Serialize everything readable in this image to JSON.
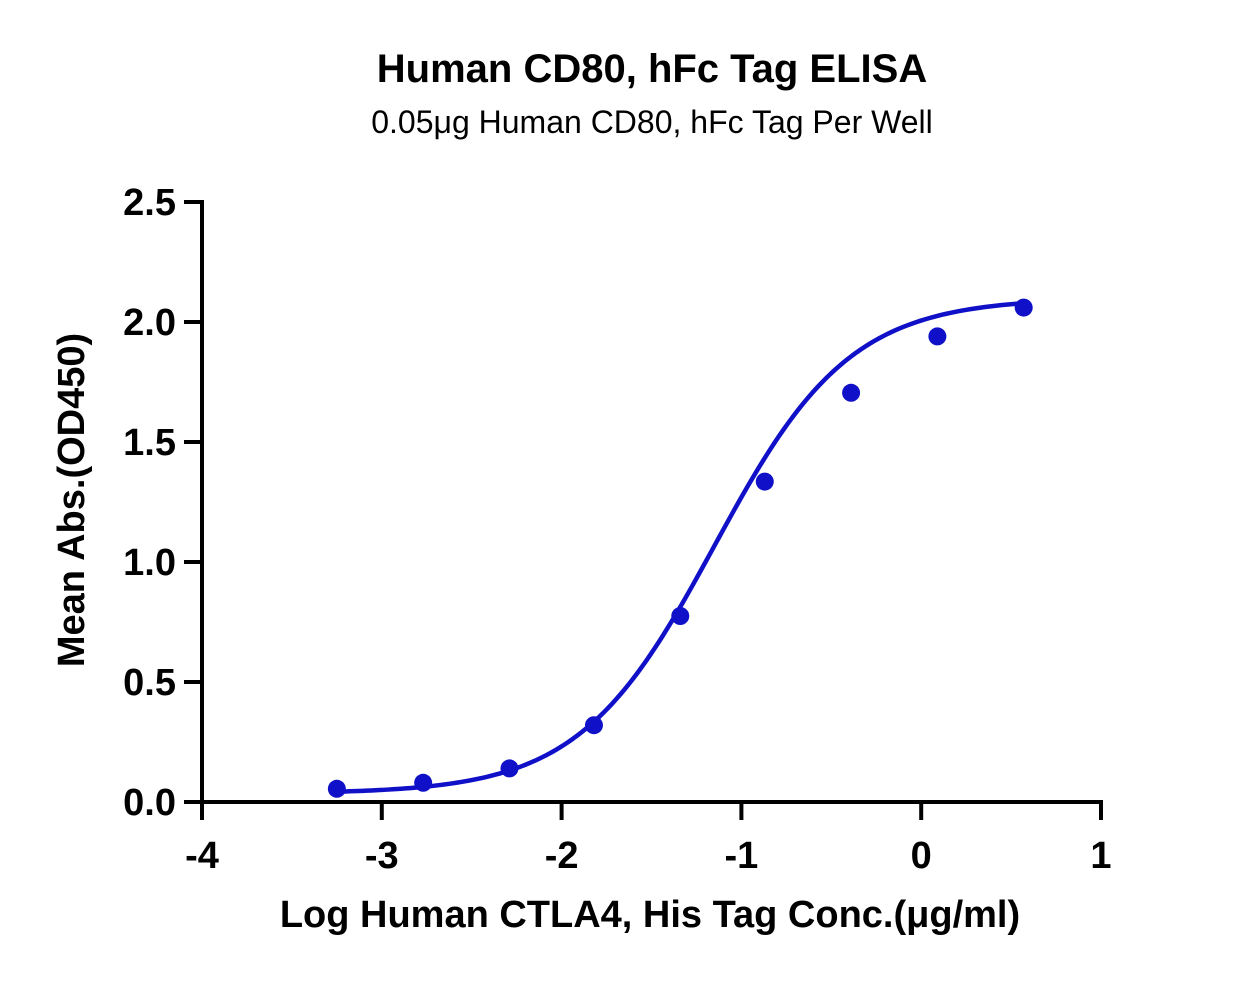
{
  "chart_data": {
    "type": "scatter",
    "title": "Human CD80, hFc Tag ELISA",
    "subtitle": "0.05μg Human CD80, hFc Tag Per Well",
    "xlabel": "Log Human CTLA4, His Tag Conc.(μg/ml)",
    "ylabel": "Mean Abs.(OD450)",
    "xlim": [
      -4,
      1
    ],
    "ylim": [
      0,
      2.5
    ],
    "xticks": [
      "-4",
      "-3",
      "-2",
      "-1",
      "0",
      "1"
    ],
    "yticks": [
      "0.0",
      "0.5",
      "1.0",
      "1.5",
      "2.0",
      "2.5"
    ],
    "grid": false,
    "series": [
      {
        "x": [
          -3.25,
          -2.77,
          -2.29,
          -1.82,
          -1.34,
          -0.87,
          -0.39,
          0.09,
          0.57
        ],
        "y": [
          0.055,
          0.08,
          0.14,
          0.32,
          0.775,
          1.335,
          1.705,
          1.94,
          2.06
        ],
        "fit": "4PL",
        "fit_params": {
          "bottom": 0.035,
          "top": 2.1,
          "log_ec50": -1.15,
          "hill": 1.15
        }
      }
    ],
    "color": "#1010C8"
  }
}
